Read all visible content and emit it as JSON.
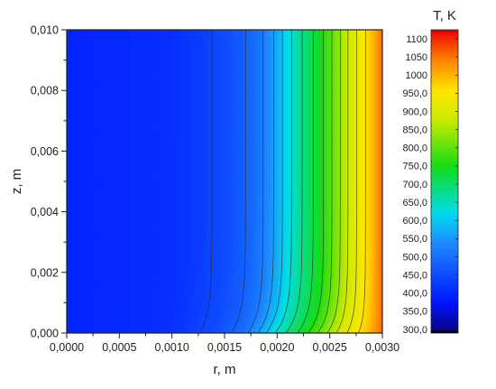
{
  "chart_data": {
    "type": "heatmap",
    "subtype": "filled-contour",
    "xlabel": "r, m",
    "ylabel": "z, m",
    "xlim": [
      0.0,
      0.003
    ],
    "ylim": [
      0.0,
      0.01
    ],
    "x_ticks": [
      "0,0000",
      "0,0005",
      "0,0010",
      "0,0015",
      "0,0020",
      "0,0025",
      "0,0030"
    ],
    "y_ticks": [
      "0,000",
      "0,002",
      "0,004",
      "0,006",
      "0,008",
      "0,010"
    ],
    "colorbar": {
      "title": "T, K",
      "min": 290,
      "max": 1125,
      "labels": [
        "300,0",
        "350,0",
        "400,0",
        "450,0",
        "500,0",
        "550,0",
        "600,0",
        "650,0",
        "700,0",
        "750,0",
        "800,0",
        "850,0",
        "900,0",
        "950,0",
        "1000",
        "1050",
        "1100"
      ],
      "label_values": [
        300,
        350,
        400,
        450,
        500,
        550,
        600,
        650,
        700,
        750,
        800,
        850,
        900,
        950,
        1000,
        1050,
        1100
      ]
    },
    "temperature_profile_top": {
      "r": [
        0.0,
        0.0005,
        0.001,
        0.0012,
        0.0015,
        0.0017,
        0.0018,
        0.0019,
        0.002,
        0.0021,
        0.0022,
        0.0023,
        0.0024,
        0.0025,
        0.0026,
        0.0027,
        0.0028,
        0.0029,
        0.003
      ],
      "T": [
        395,
        400,
        410,
        425,
        450,
        480,
        500,
        530,
        575,
        625,
        665,
        705,
        740,
        790,
        840,
        895,
        940,
        990,
        1060
      ]
    },
    "isotherm_levels": [
      440,
      480,
      520,
      560,
      600,
      640,
      680,
      720,
      760,
      800,
      840,
      880,
      920,
      960
    ],
    "grid": false,
    "legend": "colorbar right"
  }
}
